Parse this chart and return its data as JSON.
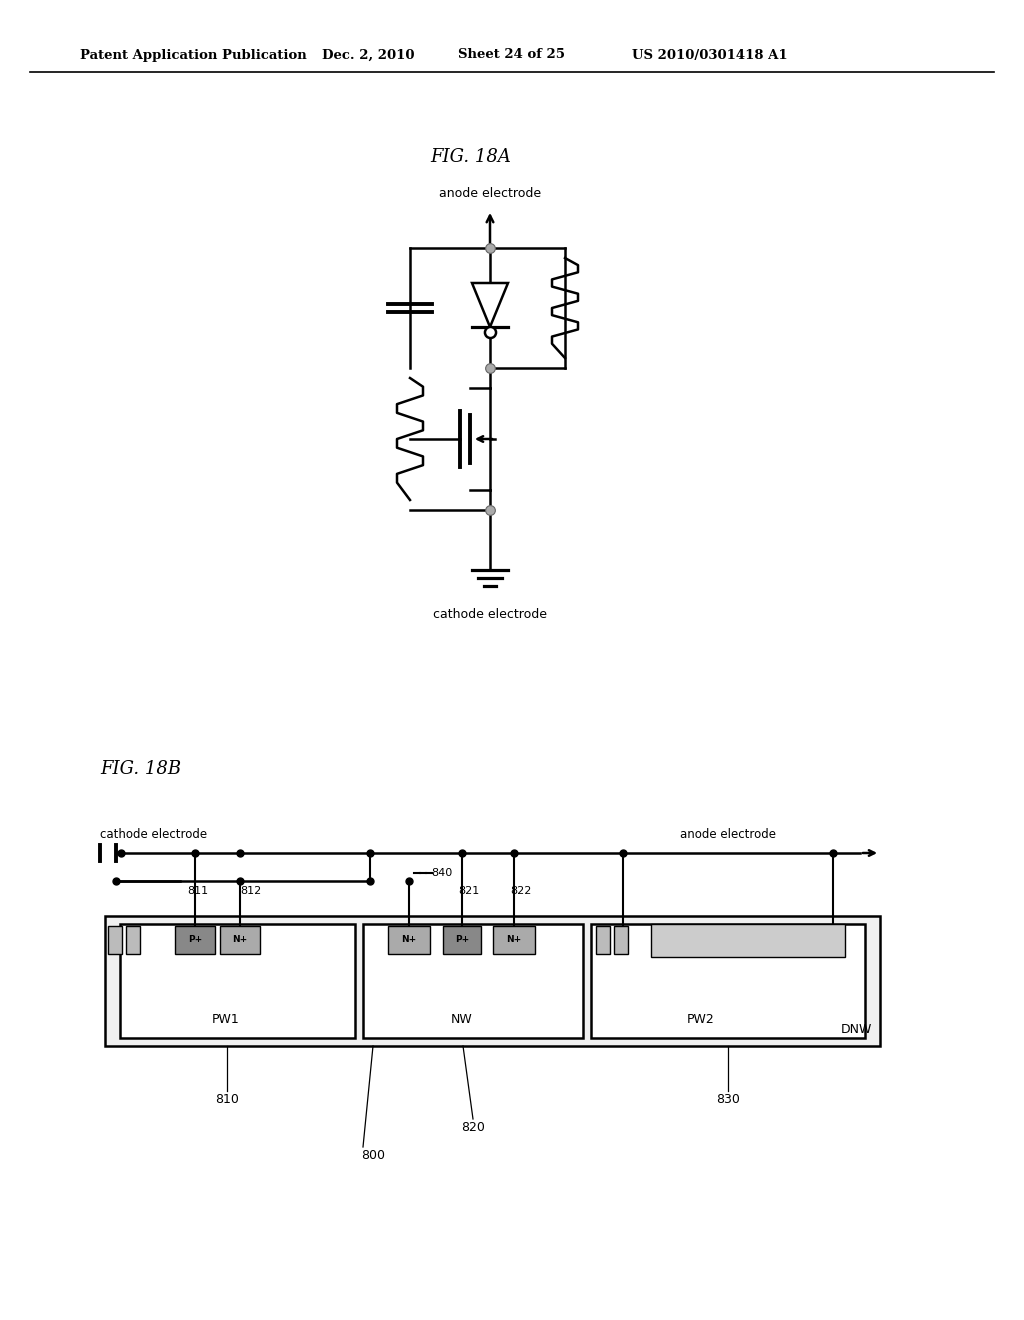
{
  "bg_color": "#ffffff",
  "header_text": "Patent Application Publication",
  "header_date": "Dec. 2, 2010",
  "header_sheet": "Sheet 24 of 25",
  "header_patent": "US 2010/0301418 A1",
  "fig18a_label": "FIG. 18A",
  "fig18b_label": "FIG. 18B",
  "anode_label": "anode electrode",
  "cathode_label": "cathode electrode",
  "fig18b_labels": {
    "cathode_electrode": "cathode electrode",
    "anode_electrode": "anode electrode",
    "PW1": "PW1",
    "NW": "NW",
    "PW2": "PW2",
    "DNW": "DNW",
    "n811": "811",
    "n812": "812",
    "n840": "840",
    "n821": "821",
    "n822": "822",
    "n810": "810",
    "n820": "820",
    "n830": "830",
    "n800": "800"
  }
}
